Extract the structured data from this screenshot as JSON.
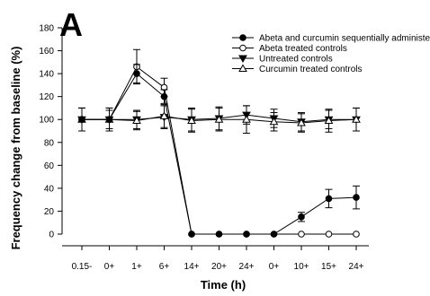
{
  "chart_data": {
    "type": "line",
    "panel_label": "A",
    "title": "",
    "xlabel": "Time (h)",
    "ylabel": "Frequency change from baseline (%)",
    "categories": [
      "0.15-",
      "0+",
      "1+",
      "6+",
      "14+",
      "20+",
      "24+",
      "0+",
      "10+",
      "15+",
      "24+"
    ],
    "ylim": [
      0,
      180
    ],
    "yticks": [
      "0",
      "20",
      "40",
      "60",
      "80",
      "100",
      "120",
      "140",
      "160",
      "180"
    ],
    "grid": false,
    "legend_position": "top-right",
    "series": [
      {
        "name": "Abeta and curcumin sequentially administered",
        "marker": "filled-circle",
        "values": [
          100,
          100,
          140,
          120,
          0,
          0,
          0,
          0,
          15,
          31,
          32
        ],
        "errors": [
          10,
          8,
          8,
          6,
          0,
          0,
          0,
          0,
          4,
          8,
          10
        ]
      },
      {
        "name": "Abeta treated controls",
        "marker": "open-circle",
        "values": [
          100,
          100,
          146,
          128,
          0,
          0,
          0,
          0,
          0,
          0,
          0
        ],
        "errors": [
          10,
          10,
          15,
          8,
          0,
          0,
          0,
          0,
          0,
          0,
          0
        ]
      },
      {
        "name": "Untreated controls",
        "marker": "filled-triangle-down",
        "values": [
          100,
          100,
          100,
          102,
          100,
          101,
          104,
          101,
          98,
          100,
          100
        ],
        "errors": [
          10,
          10,
          8,
          10,
          10,
          10,
          8,
          8,
          8,
          8,
          10
        ]
      },
      {
        "name": "Curcumin treated controls",
        "marker": "open-triangle-up",
        "values": [
          100,
          100,
          99,
          103,
          99,
          100,
          100,
          98,
          97,
          99,
          100
        ],
        "errors": [
          10,
          10,
          8,
          10,
          10,
          10,
          12,
          8,
          8,
          10,
          10
        ]
      }
    ],
    "colors": {
      "line": "#000000",
      "fill_open": "#ffffff"
    }
  }
}
